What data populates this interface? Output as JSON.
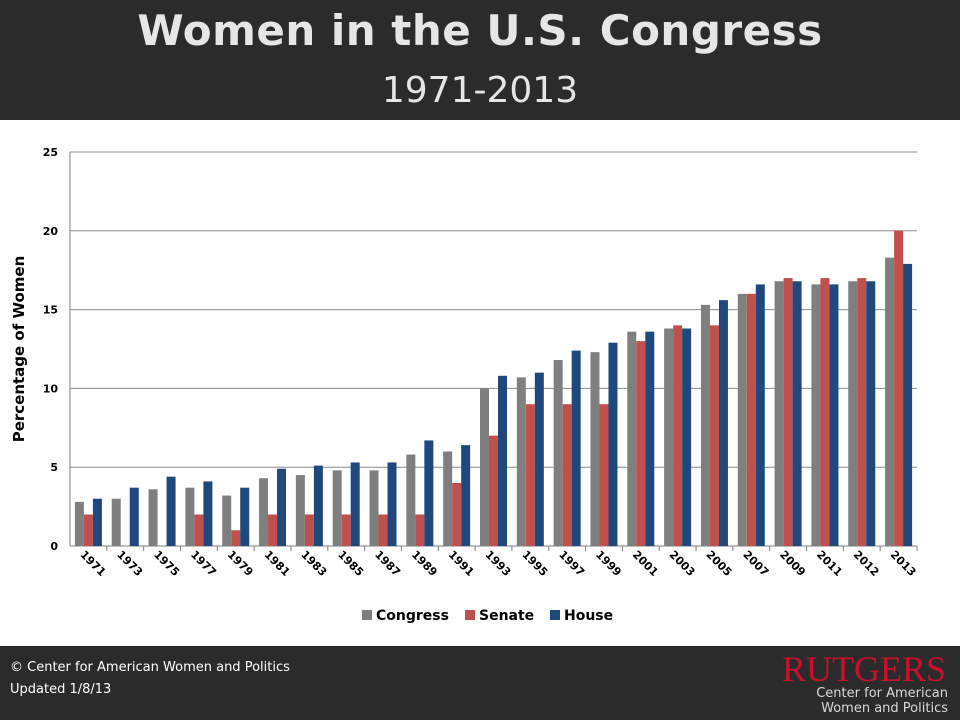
{
  "header": {
    "title": "Women in the U.S. Congress",
    "subtitle": "1971-2013"
  },
  "footer": {
    "copyright": "© Center for American Women and Politics",
    "updated": "Updated 1/8/13",
    "logo_word": "RUTGERS",
    "logo_sub1": "Center for American",
    "logo_sub2": "Women and Politics"
  },
  "colors": {
    "header_bg": "#2b2b2b",
    "congress": "#7f7f7f",
    "senate": "#c0504d",
    "house": "#1f497d",
    "logo_red": "#c8102e"
  },
  "chart_data": {
    "type": "bar",
    "title": "",
    "xlabel": "",
    "ylabel": "Percentage of Women",
    "ylim": [
      0,
      25
    ],
    "yticks": [
      0,
      5,
      10,
      15,
      20,
      25
    ],
    "grid": true,
    "legend_position": "bottom",
    "categories": [
      "1971",
      "1973",
      "1975",
      "1977",
      "1979",
      "1981",
      "1983",
      "1985",
      "1987",
      "1989",
      "1991",
      "1993",
      "1995",
      "1997",
      "1999",
      "2001",
      "2003",
      "2005",
      "2007",
      "2009",
      "2011",
      "2012",
      "2013"
    ],
    "series": [
      {
        "name": "Congress",
        "color": "#7f7f7f",
        "values": [
          2.8,
          3.0,
          3.6,
          3.7,
          3.2,
          4.3,
          4.5,
          4.8,
          4.8,
          5.8,
          6.0,
          10.0,
          10.7,
          11.8,
          12.3,
          13.6,
          13.8,
          15.3,
          16.0,
          16.8,
          16.6,
          16.8,
          18.3
        ]
      },
      {
        "name": "Senate",
        "color": "#c0504d",
        "values": [
          2,
          0,
          0,
          2,
          1,
          2,
          2,
          2,
          2,
          2,
          4,
          7,
          9,
          9,
          9,
          13,
          14,
          14,
          16,
          17,
          17,
          17,
          20
        ]
      },
      {
        "name": "House",
        "color": "#1f497d",
        "values": [
          3.0,
          3.7,
          4.4,
          4.1,
          3.7,
          4.9,
          5.1,
          5.3,
          5.3,
          6.7,
          6.4,
          10.8,
          11.0,
          12.4,
          12.9,
          13.6,
          13.8,
          15.6,
          16.6,
          16.8,
          16.6,
          16.8,
          17.9
        ]
      }
    ]
  }
}
